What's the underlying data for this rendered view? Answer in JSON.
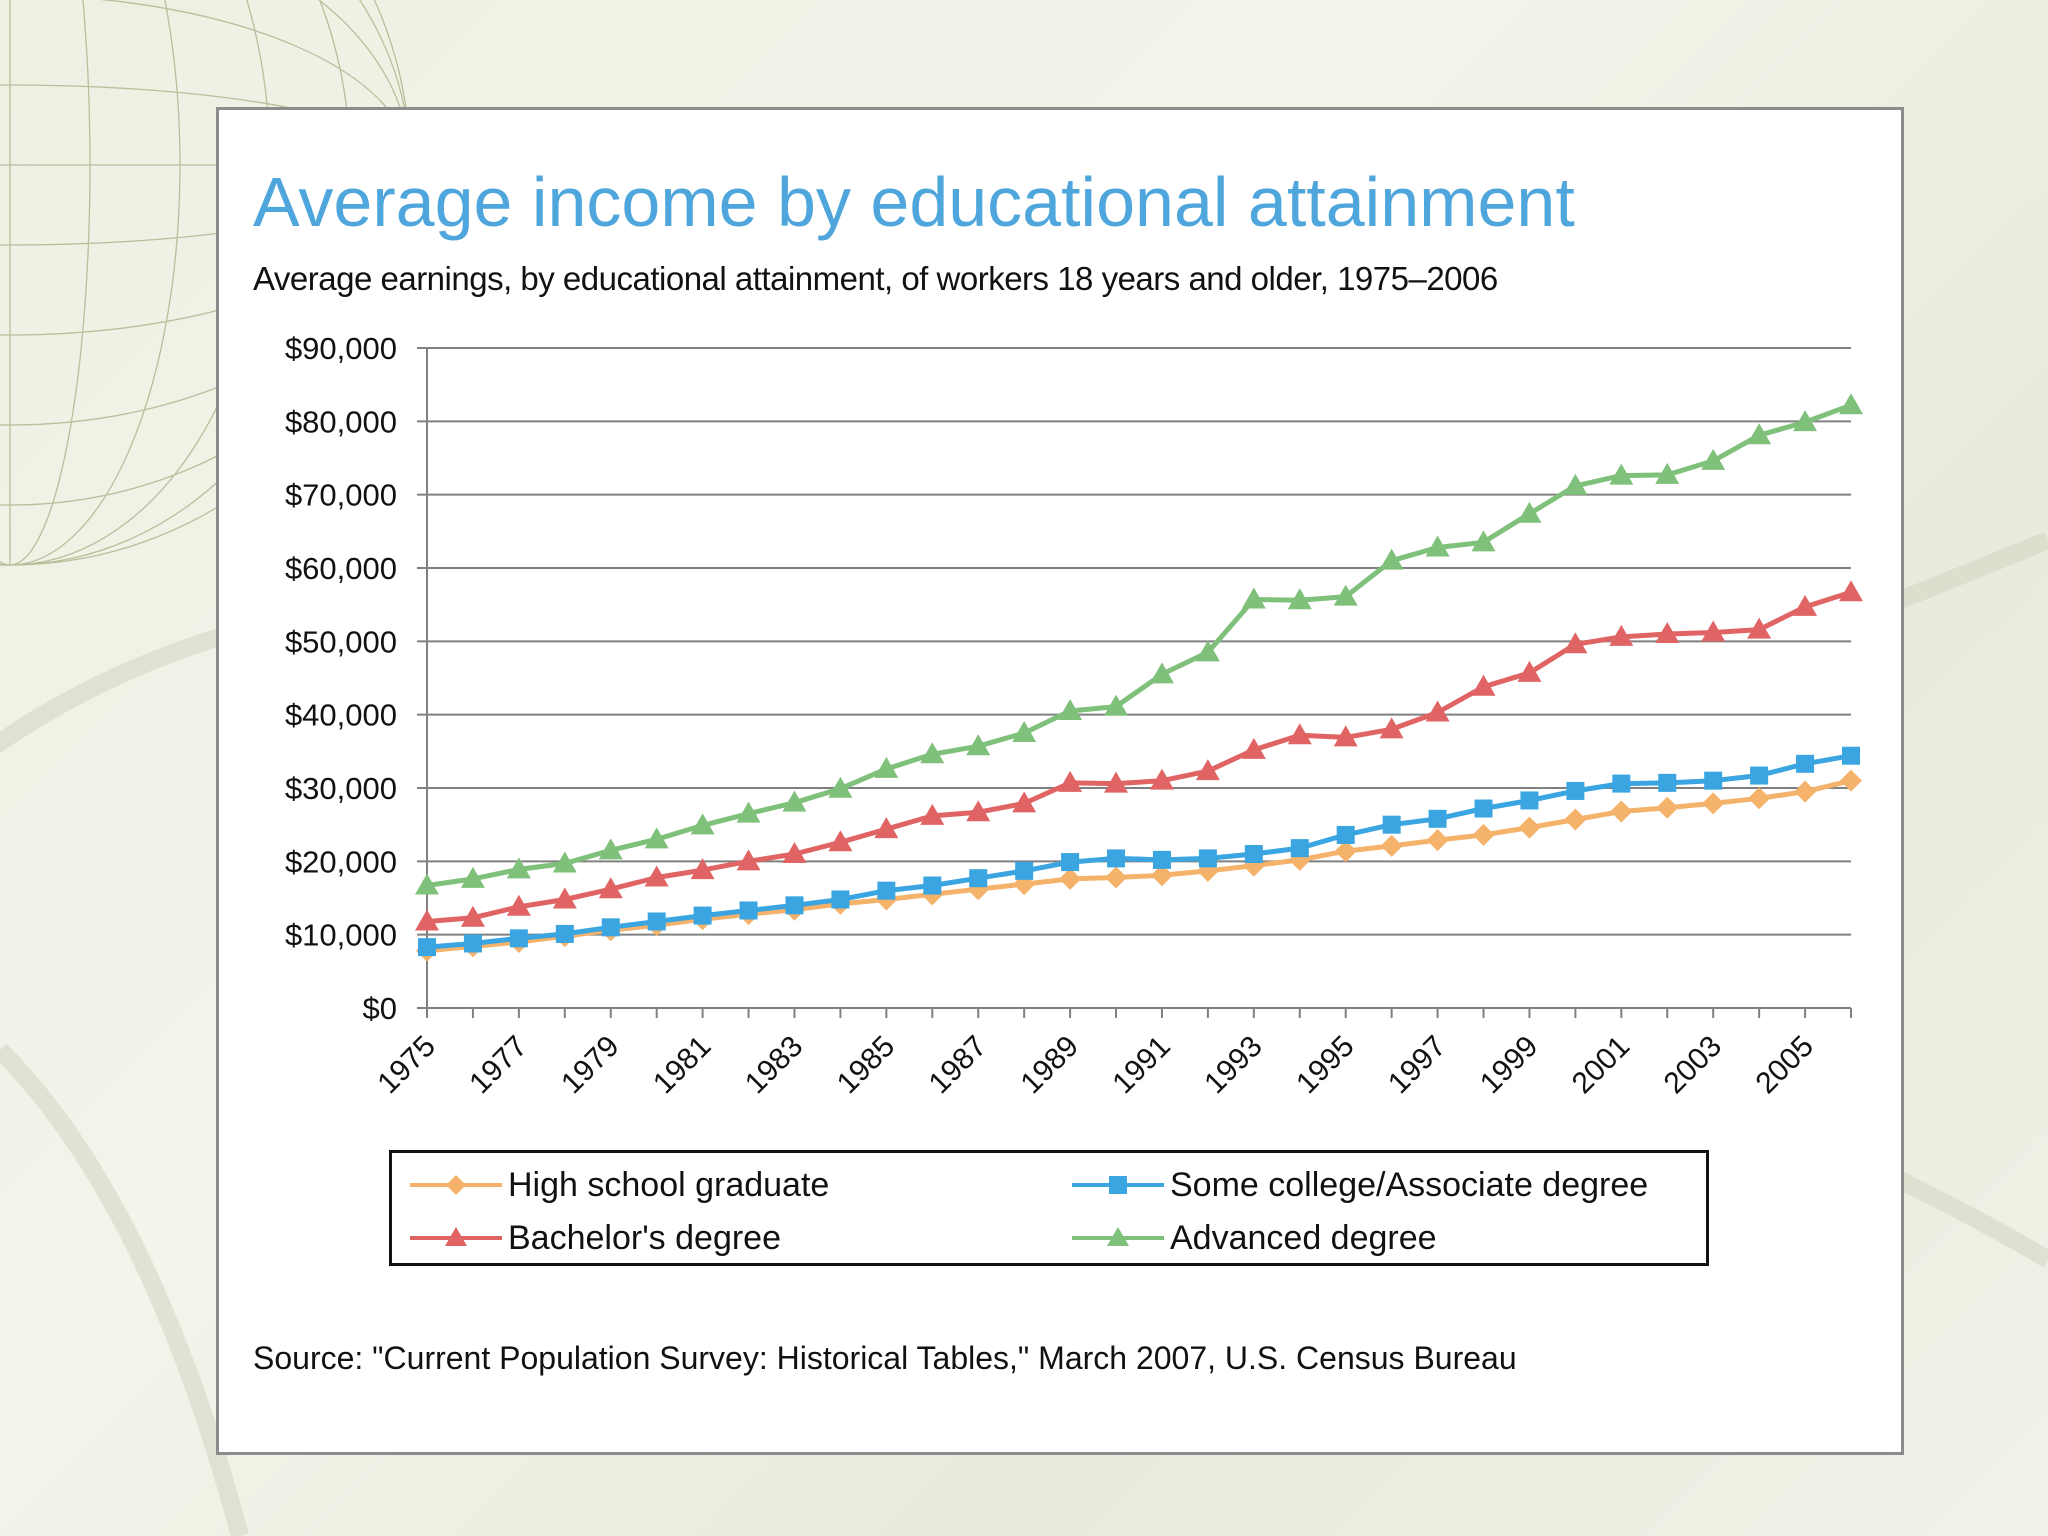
{
  "slide": {
    "title": "Average income by educational attainment",
    "subtitle": "Average earnings, by educational attainment, of workers 18 years and older, 1975–2006",
    "source": "Source: \"Current Population Survey: Historical Tables,\" March 2007, U.S. Census Bureau"
  },
  "chart_data": {
    "type": "line",
    "title": "Average income by educational attainment",
    "subtitle": "Average earnings, by educational attainment, of workers 18 years and older, 1975–2006",
    "xlabel": "",
    "ylabel": "",
    "ylim": [
      0,
      90000
    ],
    "yticks": [
      0,
      10000,
      20000,
      30000,
      40000,
      50000,
      60000,
      70000,
      80000,
      90000
    ],
    "ytick_labels": [
      "$0",
      "$10,000",
      "$20,000",
      "$30,000",
      "$40,000",
      "$50,000",
      "$60,000",
      "$70,000",
      "$80,000",
      "$90,000"
    ],
    "x": [
      1975,
      1976,
      1977,
      1978,
      1979,
      1980,
      1981,
      1982,
      1983,
      1984,
      1985,
      1986,
      1987,
      1988,
      1989,
      1990,
      1991,
      1992,
      1993,
      1994,
      1995,
      1996,
      1997,
      1998,
      1999,
      2000,
      2001,
      2002,
      2003,
      2004,
      2005,
      2006
    ],
    "xtick_labels": [
      "1975",
      "1977",
      "1979",
      "1981",
      "1983",
      "1985",
      "1987",
      "1989",
      "1991",
      "1993",
      "1995",
      "1997",
      "1999",
      "2001",
      "2003",
      "2005"
    ],
    "xtick_label_years": [
      1975,
      1977,
      1979,
      1981,
      1983,
      1985,
      1987,
      1989,
      1991,
      1993,
      1995,
      1997,
      1999,
      2001,
      2003,
      2005
    ],
    "grid": true,
    "legend": "bottom",
    "series": [
      {
        "name": "High school graduate",
        "color": "#f4b26b",
        "marker": "diamond",
        "values": [
          7800,
          8400,
          9000,
          9800,
          10600,
          11300,
          12100,
          12800,
          13400,
          14200,
          14800,
          15500,
          16200,
          16900,
          17600,
          17800,
          18100,
          18700,
          19400,
          20200,
          21400,
          22100,
          22900,
          23600,
          24600,
          25700,
          26800,
          27300,
          27900,
          28600,
          29500,
          31000
        ]
      },
      {
        "name": "Some college/Associate degree",
        "color": "#3aa5e0",
        "marker": "square",
        "values": [
          8300,
          8800,
          9500,
          10100,
          11000,
          11800,
          12600,
          13300,
          14000,
          14800,
          16000,
          16700,
          17700,
          18700,
          19900,
          20400,
          20200,
          20400,
          21000,
          21800,
          23600,
          25000,
          25800,
          27200,
          28300,
          29600,
          30600,
          30700,
          31000,
          31700,
          33300,
          34400
        ]
      },
      {
        "name": "Bachelor's degree",
        "color": "#e06464",
        "marker": "triangle",
        "values": [
          11800,
          12300,
          13800,
          14800,
          16200,
          17800,
          18800,
          20000,
          21000,
          22600,
          24400,
          26200,
          26700,
          27900,
          30700,
          30600,
          31000,
          32300,
          35200,
          37200,
          36900,
          38000,
          40300,
          43800,
          45700,
          49600,
          50600,
          51000,
          51200,
          51600,
          54700,
          56700
        ]
      },
      {
        "name": "Advanced degree",
        "color": "#7fc07a",
        "marker": "triangle",
        "values": [
          16700,
          17600,
          18900,
          19700,
          21500,
          23000,
          24900,
          26500,
          28000,
          29900,
          32600,
          34600,
          35700,
          37500,
          40500,
          41100,
          45500,
          48500,
          55700,
          55600,
          56100,
          61000,
          62800,
          63500,
          67400,
          71200,
          72600,
          72700,
          74600,
          78100,
          79900,
          82200
        ]
      }
    ]
  }
}
